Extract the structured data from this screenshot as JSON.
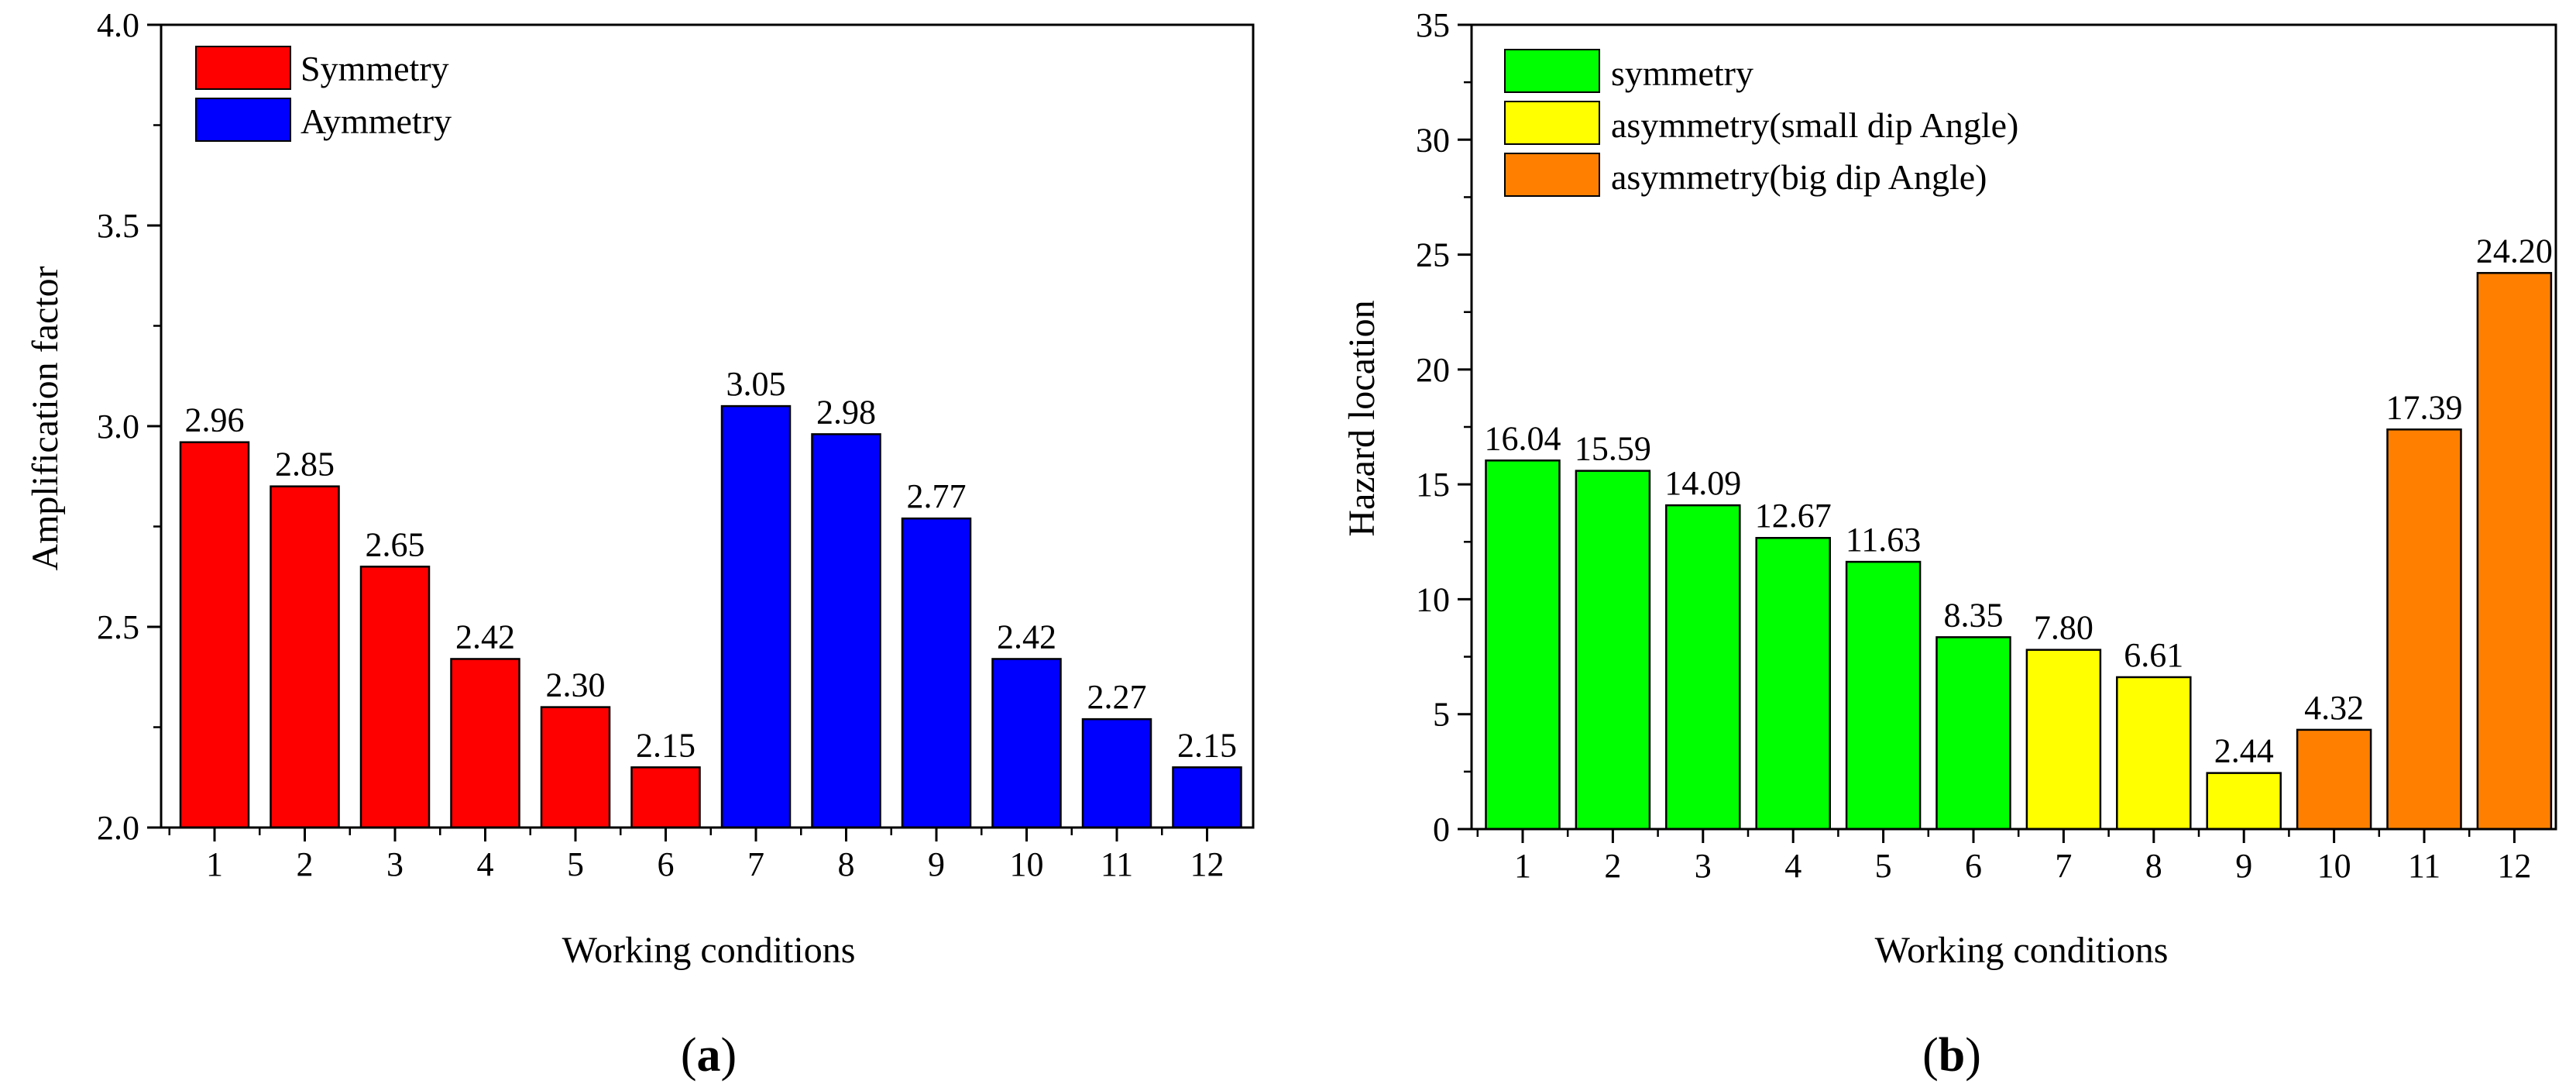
{
  "chart_data": [
    {
      "type": "bar",
      "panel_label": "a",
      "title": "",
      "xlabel": "Working conditions",
      "ylabel": "Amplification factor",
      "categories": [
        "1",
        "2",
        "3",
        "4",
        "5",
        "6",
        "7",
        "8",
        "9",
        "10",
        "11",
        "12"
      ],
      "values": [
        2.96,
        2.85,
        2.65,
        2.42,
        2.3,
        2.15,
        3.05,
        2.98,
        2.77,
        2.42,
        2.27,
        2.15
      ],
      "value_labels": [
        "2.96",
        "2.85",
        "2.65",
        "2.42",
        "2.30",
        "2.15",
        "3.05",
        "2.98",
        "2.77",
        "2.42",
        "2.27",
        "2.15"
      ],
      "groups": [
        0,
        0,
        0,
        0,
        0,
        0,
        1,
        1,
        1,
        1,
        1,
        1
      ],
      "legend": [
        {
          "label": "Symmetry",
          "color": "#ff0000"
        },
        {
          "label": "Aymmetry",
          "color": "#0000ff"
        }
      ],
      "legend_position": "top-left",
      "ylim": [
        2.0,
        4.0
      ],
      "yticks": [
        "2.0",
        "2.5",
        "3.0",
        "3.5",
        "4.0"
      ],
      "ytick_values": [
        2.0,
        2.5,
        3.0,
        3.5,
        4.0
      ],
      "grid": false
    },
    {
      "type": "bar",
      "panel_label": "b",
      "title": "",
      "xlabel": "Working conditions",
      "ylabel": "Hazard location",
      "categories": [
        "1",
        "2",
        "3",
        "4",
        "5",
        "6",
        "7",
        "8",
        "9",
        "10",
        "11",
        "12"
      ],
      "values": [
        16.04,
        15.59,
        14.09,
        12.67,
        11.63,
        8.35,
        7.8,
        6.61,
        2.44,
        4.32,
        17.39,
        24.2
      ],
      "value_labels": [
        "16.04",
        "15.59",
        "14.09",
        "12.67",
        "11.63",
        "8.35",
        "7.80",
        "6.61",
        "2.44",
        "4.32",
        "17.39",
        "24.20"
      ],
      "groups": [
        0,
        0,
        0,
        0,
        0,
        0,
        1,
        1,
        1,
        2,
        2,
        2
      ],
      "legend": [
        {
          "label": "symmetry",
          "color": "#00ff00"
        },
        {
          "label": "asymmetry(small dip Angle)",
          "color": "#ffff00"
        },
        {
          "label": "asymmetry(big dip Angle)",
          "color": "#ff8000"
        }
      ],
      "legend_position": "top-left",
      "ylim": [
        0,
        35
      ],
      "yticks": [
        "0",
        "5",
        "10",
        "15",
        "20",
        "25",
        "30",
        "35"
      ],
      "ytick_values": [
        0,
        5,
        10,
        15,
        20,
        25,
        30,
        35
      ],
      "grid": false
    }
  ]
}
